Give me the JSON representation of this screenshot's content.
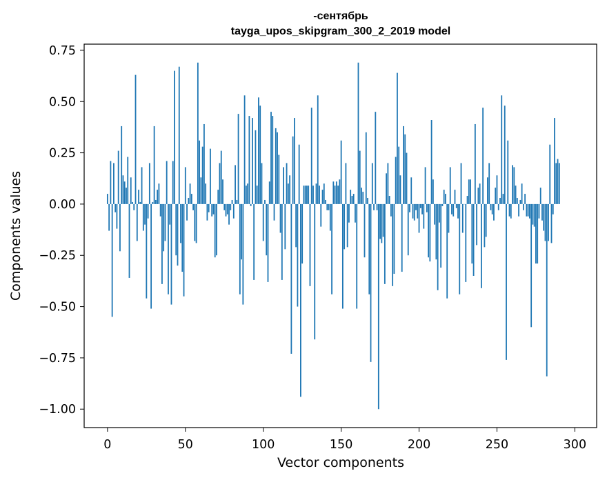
{
  "chart_data": {
    "type": "bar",
    "title": "-сентябрь",
    "subtitle": "tayga_upos_skipgram_300_2_2019 model",
    "xlabel": "Vector components",
    "ylabel": "Components values",
    "xlim": [
      -15,
      314
    ],
    "ylim": [
      -1.09,
      0.78
    ],
    "xticks": [
      0,
      50,
      100,
      150,
      200,
      250,
      300
    ],
    "yticks": [
      0.75,
      0.5,
      0.25,
      0.0,
      -0.25,
      -0.5,
      -0.75,
      -1.0
    ],
    "ytick_labels": [
      "0.75",
      "0.50",
      "0.25",
      "0.00",
      "−0.25",
      "−0.50",
      "−0.75",
      "−1.00"
    ],
    "grid": false,
    "bar_color": "#1f77b4",
    "x_start": 0,
    "values": [
      0.05,
      -0.13,
      0.21,
      -0.55,
      0.2,
      -0.04,
      -0.12,
      0.26,
      -0.23,
      0.38,
      0.14,
      0.11,
      0.08,
      0.23,
      -0.36,
      0.13,
      0.01,
      -0.03,
      0.63,
      -0.18,
      0.07,
      0.01,
      0.18,
      -0.13,
      -0.1,
      -0.46,
      -0.07,
      0.2,
      -0.51,
      0.01,
      0.38,
      0.02,
      0.07,
      0.1,
      -0.06,
      -0.39,
      -0.23,
      -0.18,
      0.21,
      -0.44,
      -0.1,
      -0.49,
      0.21,
      0.65,
      -0.25,
      -0.3,
      0.67,
      -0.19,
      -0.33,
      -0.45,
      0.18,
      -0.08,
      0.03,
      0.1,
      0.05,
      -0.03,
      -0.18,
      -0.19,
      0.69,
      0.31,
      0.13,
      0.28,
      0.39,
      0.1,
      -0.08,
      -0.04,
      0.27,
      -0.06,
      -0.05,
      -0.26,
      -0.25,
      0.07,
      0.2,
      0.26,
      0.12,
      -0.03,
      -0.06,
      -0.05,
      -0.1,
      -0.03,
      0.02,
      -0.07,
      0.19,
      0.02,
      0.44,
      -0.44,
      -0.27,
      -0.49,
      0.53,
      0.09,
      0.1,
      0.43,
      -0.01,
      0.42,
      -0.37,
      0.36,
      0.09,
      0.52,
      0.48,
      0.2,
      -0.18,
      0.02,
      -0.25,
      -0.38,
      0.11,
      0.45,
      0.43,
      -0.08,
      0.37,
      0.35,
      0.24,
      -0.14,
      -0.37,
      0.18,
      -0.22,
      0.2,
      0.1,
      0.14,
      -0.73,
      0.33,
      0.42,
      -0.21,
      -0.5,
      0.29,
      -0.94,
      -0.29,
      0.09,
      0.09,
      0.09,
      0.09,
      -0.4,
      0.47,
      0.09,
      -0.66,
      0.1,
      0.53,
      0.09,
      -0.11,
      0.07,
      0.1,
      0.02,
      -0.03,
      -0.03,
      -0.13,
      -0.44,
      0.11,
      0.09,
      0.11,
      0.09,
      0.12,
      0.31,
      -0.51,
      -0.22,
      0.2,
      -0.21,
      -0.09,
      0.07,
      0.04,
      0.05,
      -0.09,
      -0.51,
      0.69,
      0.26,
      0.08,
      0.06,
      -0.26,
      0.35,
      0.03,
      -0.44,
      -0.77,
      0.2,
      -0.03,
      0.45,
      -0.03,
      -1.0,
      -0.17,
      -0.19,
      -0.16,
      -0.39,
      0.15,
      0.2,
      0.04,
      -0.06,
      -0.4,
      -0.34,
      0.23,
      0.64,
      0.28,
      0.14,
      -0.33,
      0.38,
      0.34,
      0.25,
      -0.25,
      -0.04,
      0.13,
      -0.07,
      -0.08,
      -0.03,
      -0.07,
      -0.14,
      -0.02,
      -0.05,
      -0.12,
      0.18,
      -0.04,
      -0.26,
      -0.28,
      0.41,
      0.12,
      -0.1,
      -0.27,
      -0.42,
      -0.09,
      -0.31,
      -0.01,
      0.07,
      0.05,
      -0.46,
      -0.14,
      0.18,
      -0.05,
      -0.06,
      0.07,
      -0.02,
      -0.07,
      -0.44,
      0.2,
      -0.14,
      0.0,
      -0.38,
      0.04,
      0.12,
      0.12,
      -0.29,
      -0.35,
      0.39,
      -0.2,
      0.08,
      0.1,
      -0.41,
      0.47,
      -0.21,
      -0.16,
      0.13,
      0.2,
      -0.03,
      -0.05,
      -0.08,
      0.08,
      0.14,
      -0.03,
      0.03,
      0.53,
      0.05,
      0.48,
      -0.76,
      0.31,
      -0.06,
      -0.07,
      0.19,
      0.18,
      0.09,
      0.03,
      -0.06,
      0.02,
      0.1,
      -0.03,
      0.05,
      -0.06,
      -0.06,
      -0.07,
      -0.6,
      -0.1,
      -0.11,
      -0.29,
      -0.29,
      -0.07,
      0.08,
      -0.08,
      -0.13,
      -0.18,
      -0.84,
      -0.18,
      0.29,
      -0.19,
      -0.05,
      0.42,
      0.2,
      0.22,
      0.2
    ]
  }
}
